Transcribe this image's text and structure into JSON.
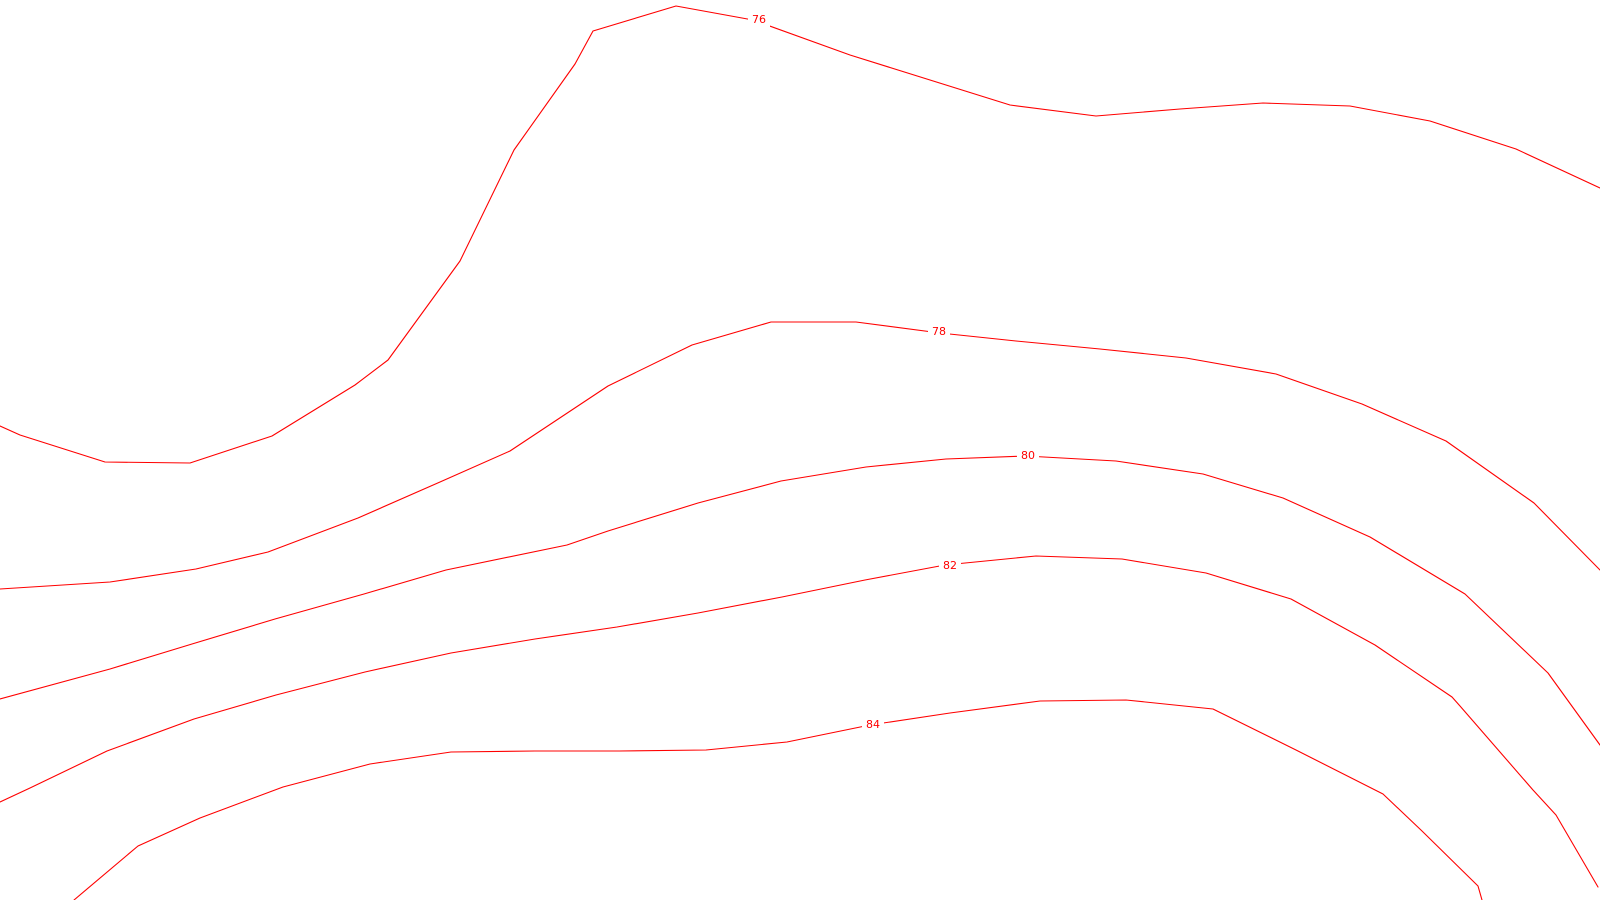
{
  "map": {
    "line_color": "#ff0000",
    "background": "#ffffff",
    "contours": [
      {
        "elevation": "76"
      },
      {
        "elevation": "78"
      },
      {
        "elevation": "80"
      },
      {
        "elevation": "82"
      },
      {
        "elevation": "84"
      }
    ]
  }
}
